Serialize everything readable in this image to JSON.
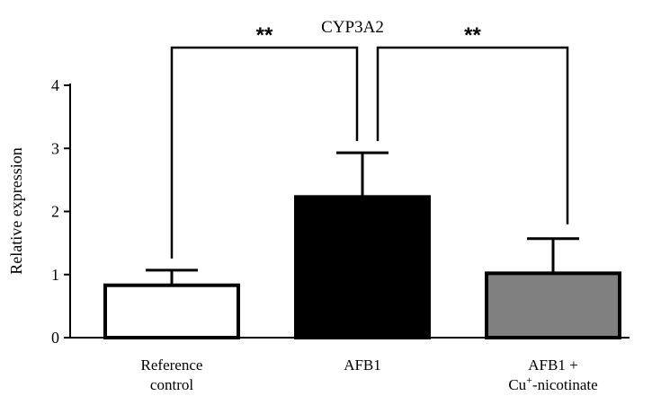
{
  "chart_data": {
    "type": "bar",
    "title": "CYP3A2",
    "ylabel": "Relative expression",
    "xlabel": "",
    "ylim": [
      0,
      4
    ],
    "yticks": [
      "0",
      "1",
      "2",
      "3",
      "4"
    ],
    "categories": [
      [
        "Reference",
        "control"
      ],
      [
        "AFB1"
      ],
      [
        "AFB1 +",
        "Cu+-nicotinate"
      ]
    ],
    "values": [
      0.83,
      2.23,
      1.02
    ],
    "errors": [
      0.24,
      0.7,
      0.55
    ],
    "colors": [
      "#ffffff",
      "#000000",
      "#808080"
    ],
    "significance": [
      {
        "from": 0,
        "to": 1,
        "label": "**"
      },
      {
        "from": 1,
        "to": 2,
        "label": "**"
      }
    ],
    "grid": false,
    "legend": "none"
  }
}
